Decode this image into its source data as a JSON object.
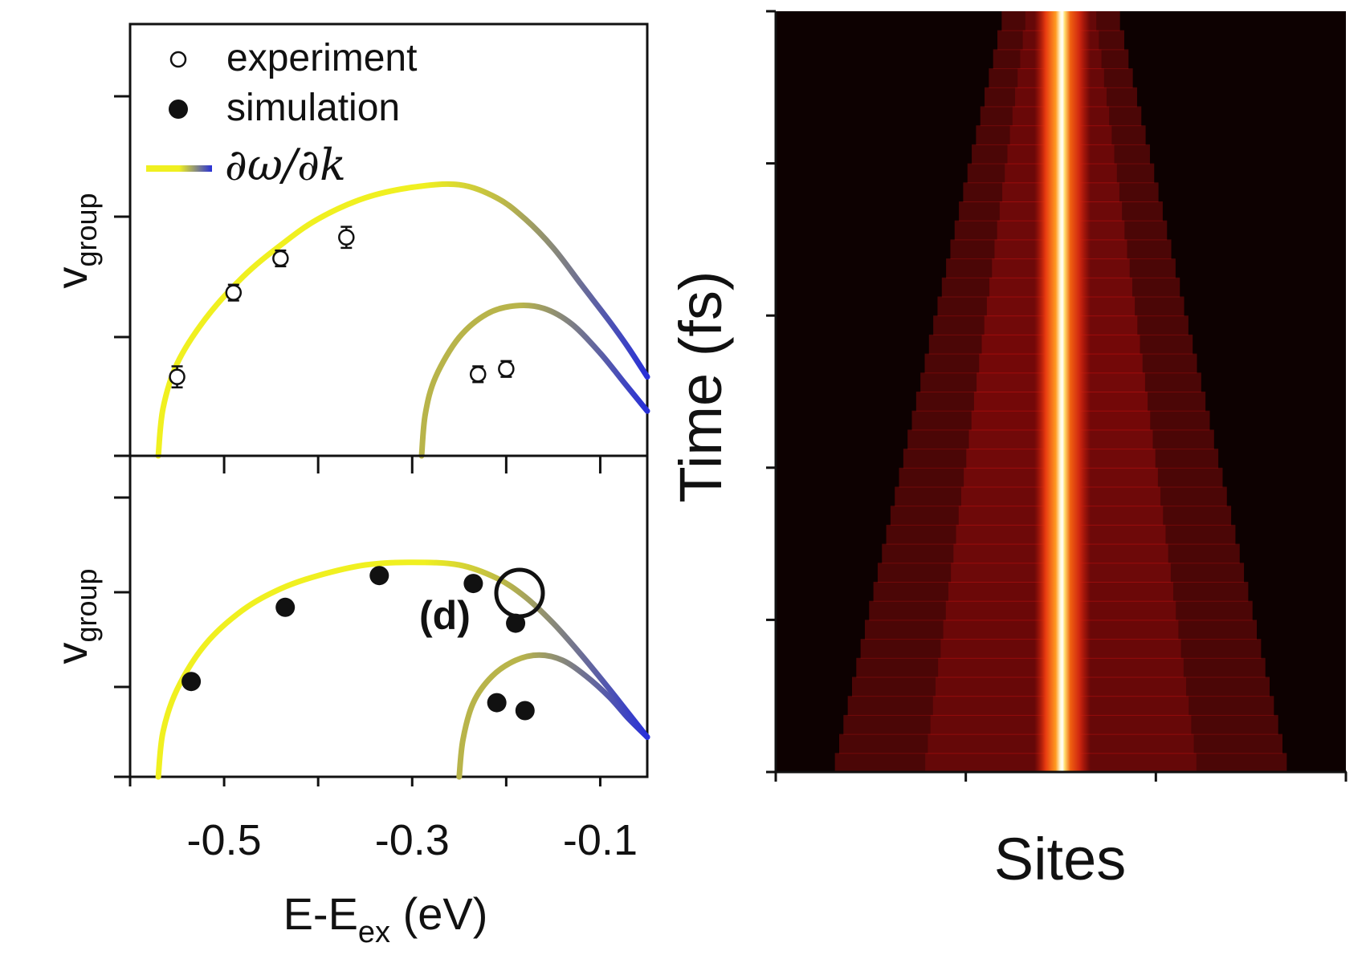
{
  "legend": {
    "experiment": "experiment",
    "simulation": "simulation",
    "derivative": "∂ω/∂k"
  },
  "annotation": "(d)",
  "left_panel": {
    "ylabel_main": "v",
    "ylabel_sub": "group",
    "xlabel_main": "E-E",
    "xlabel_sub": "ex",
    "xlabel_unit": " (eV)",
    "xtick_labels": [
      "-0.5",
      "-0.3",
      "-0.1"
    ]
  },
  "right_panel": {
    "ylabel": "Time (fs)",
    "xlabel": "Sites"
  },
  "colors": {
    "curve_start": "#f0f020",
    "curve_mid": "#b8b44a",
    "curve_end": "#2830d8",
    "heat_low": "#0d0101",
    "heat_mid": "#c01010",
    "heat_high": "#fffde0"
  },
  "chart_data": [
    {
      "type": "scatter",
      "panel": "top-left",
      "xlabel": "E-Eex (eV)",
      "ylabel": "vgroup",
      "xlim": [
        -0.6,
        -0.05
      ],
      "ylim": [
        0,
        1
      ],
      "xticks": [
        -0.5,
        -0.3,
        -0.1
      ],
      "legend_placement": "top-left",
      "series": [
        {
          "name": "experiment",
          "marker": "open-circle",
          "x": [
            -0.55,
            -0.49,
            -0.44,
            -0.37,
            -0.23,
            -0.2
          ],
          "y": [
            0.3,
            0.62,
            0.75,
            0.83,
            0.31,
            0.33
          ],
          "yerr": [
            0.04,
            0.03,
            0.03,
            0.04,
            0.03,
            0.03
          ]
        },
        {
          "name": "∂ω/∂k",
          "type": "line",
          "branch": "upper",
          "x": [
            -0.57,
            -0.565,
            -0.55,
            -0.52,
            -0.48,
            -0.44,
            -0.4,
            -0.35,
            -0.3,
            -0.25,
            -0.21,
            -0.18,
            -0.15,
            -0.12,
            -0.09,
            -0.07,
            -0.05
          ],
          "y": [
            0.0,
            0.18,
            0.35,
            0.52,
            0.68,
            0.8,
            0.9,
            0.98,
            1.02,
            1.03,
            0.98,
            0.9,
            0.79,
            0.65,
            0.51,
            0.41,
            0.3
          ]
        },
        {
          "name": "∂ω/∂k",
          "type": "line",
          "branch": "lower",
          "x": [
            -0.29,
            -0.286,
            -0.275,
            -0.25,
            -0.22,
            -0.19,
            -0.16,
            -0.13,
            -0.1,
            -0.075,
            -0.05
          ],
          "y": [
            0.0,
            0.16,
            0.3,
            0.45,
            0.54,
            0.57,
            0.56,
            0.5,
            0.39,
            0.28,
            0.17
          ]
        }
      ]
    },
    {
      "type": "scatter",
      "panel": "bottom-left",
      "xlabel": "E-Eex (eV)",
      "ylabel": "vgroup",
      "xlim": [
        -0.6,
        -0.05
      ],
      "ylim": [
        0,
        1
      ],
      "xticks": [
        -0.5,
        -0.3,
        -0.1
      ],
      "series": [
        {
          "name": "simulation",
          "marker": "filled-circle",
          "x": [
            -0.535,
            -0.435,
            -0.335,
            -0.235,
            -0.21,
            -0.19,
            -0.18
          ],
          "y": [
            0.36,
            0.64,
            0.76,
            0.73,
            0.28,
            0.58,
            0.25
          ]
        },
        {
          "name": "∂ω/∂k",
          "type": "line",
          "branch": "upper",
          "x": [
            -0.57,
            -0.565,
            -0.55,
            -0.52,
            -0.48,
            -0.44,
            -0.4,
            -0.35,
            -0.3,
            -0.25,
            -0.21,
            -0.18,
            -0.15,
            -0.12,
            -0.09,
            -0.07,
            -0.05
          ],
          "y": [
            0.0,
            0.17,
            0.33,
            0.5,
            0.63,
            0.71,
            0.76,
            0.8,
            0.81,
            0.8,
            0.75,
            0.68,
            0.58,
            0.46,
            0.33,
            0.24,
            0.15
          ]
        },
        {
          "name": "∂ω/∂k",
          "type": "line",
          "branch": "lower",
          "x": [
            -0.25,
            -0.246,
            -0.235,
            -0.215,
            -0.19,
            -0.165,
            -0.14,
            -0.115,
            -0.09,
            -0.07,
            -0.05
          ],
          "y": [
            0.0,
            0.14,
            0.28,
            0.38,
            0.44,
            0.46,
            0.44,
            0.38,
            0.3,
            0.22,
            0.15
          ]
        }
      ]
    },
    {
      "type": "heatmap",
      "panel": "right",
      "xlabel": "Sites",
      "ylabel": "Time (fs)",
      "xticks_count": 4,
      "yticks_count": 6,
      "center_fraction": 0.5,
      "core_halfwidth_fraction": 0.025,
      "spread_halfwidth_fraction_at_start": 0.4,
      "spread_halfwidth_fraction_at_end": 0.1
    }
  ]
}
